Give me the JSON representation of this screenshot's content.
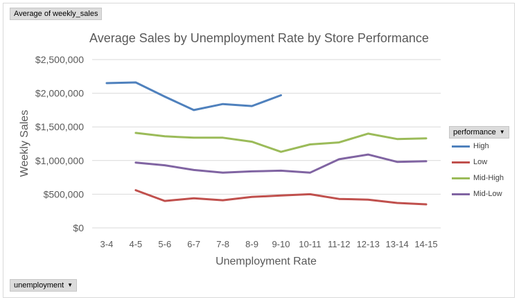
{
  "value_field_button": {
    "label": "Average of weekly_sales"
  },
  "legend_field_button": {
    "label": "performance"
  },
  "axis_field_button": {
    "label": "unemployment"
  },
  "colors": {
    "High": "#4f81bd",
    "Low": "#c0504d",
    "Mid-High": "#9bbb59",
    "Mid-Low": "#8064a2",
    "grid": "#d9d9d9",
    "text": "#595959"
  },
  "chart_data": {
    "type": "line",
    "title": "Average Sales by Unemployment Rate by Store Performance",
    "xlabel": "Unemployment Rate",
    "ylabel": "Weekly Sales",
    "categories": [
      "3-4",
      "4-5",
      "5-6",
      "6-7",
      "7-8",
      "8-9",
      "9-10",
      "10-11",
      "11-12",
      "12-13",
      "13-14",
      "14-15"
    ],
    "ylim": [
      0,
      2500000
    ],
    "yticks": [
      0,
      500000,
      1000000,
      1500000,
      2000000,
      2500000
    ],
    "ytick_labels": [
      "$0",
      "$500,000",
      "$1,000,000",
      "$1,500,000",
      "$2,000,000",
      "$2,500,000"
    ],
    "grid": true,
    "legend_position": "right",
    "series": [
      {
        "name": "High",
        "values": [
          2150000,
          2160000,
          1950000,
          1750000,
          1840000,
          1810000,
          1970000,
          null,
          null,
          null,
          null,
          null
        ]
      },
      {
        "name": "Low",
        "values": [
          null,
          560000,
          400000,
          440000,
          410000,
          460000,
          480000,
          500000,
          430000,
          420000,
          370000,
          350000
        ]
      },
      {
        "name": "Mid-High",
        "values": [
          null,
          1410000,
          1360000,
          1340000,
          1340000,
          1280000,
          1130000,
          1240000,
          1270000,
          1400000,
          1320000,
          1330000
        ]
      },
      {
        "name": "Mid-Low",
        "values": [
          null,
          970000,
          930000,
          860000,
          820000,
          840000,
          850000,
          820000,
          1020000,
          1090000,
          980000,
          990000
        ]
      }
    ]
  }
}
